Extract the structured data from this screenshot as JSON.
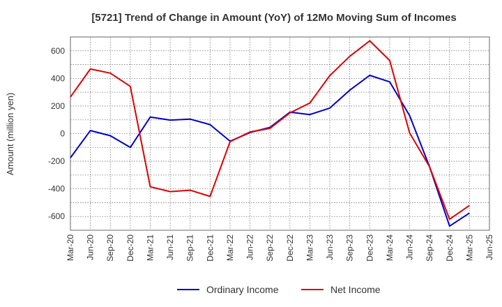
{
  "chart_data": {
    "type": "line",
    "title": "[5721]  Trend of Change in Amount (YoY) of 12Mo Moving Sum of Incomes",
    "xlabel": "",
    "ylabel": "Amount (million yen)",
    "ylim": [
      -700,
      700
    ],
    "yticks": [
      -600,
      -400,
      -200,
      0,
      200,
      400,
      600
    ],
    "categories": [
      "Mar-20",
      "Jun-20",
      "Sep-20",
      "Dec-20",
      "Mar-21",
      "Jun-21",
      "Sep-21",
      "Dec-21",
      "Mar-22",
      "Jun-22",
      "Sep-22",
      "Dec-22",
      "Mar-23",
      "Jun-23",
      "Sep-23",
      "Dec-23",
      "Mar-24",
      "Jun-24",
      "Sep-24",
      "Dec-24",
      "Mar-25",
      "Jun-25"
    ],
    "grid": true,
    "legend_position": "bottom",
    "series": [
      {
        "name": "Ordinary Income",
        "color": "#0000cc",
        "values": [
          -175,
          22,
          -15,
          -100,
          120,
          98,
          105,
          65,
          -55,
          8,
          45,
          155,
          138,
          185,
          315,
          422,
          375,
          130,
          -240,
          -670,
          -575,
          null
        ]
      },
      {
        "name": "Net Income",
        "color": "#dd0000",
        "values": [
          265,
          468,
          438,
          342,
          -385,
          -420,
          -410,
          -455,
          -58,
          12,
          38,
          150,
          222,
          420,
          560,
          672,
          530,
          5,
          -240,
          -620,
          -520,
          null
        ]
      }
    ]
  }
}
